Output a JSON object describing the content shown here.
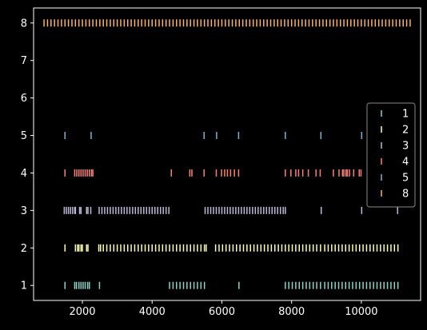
{
  "chart_data": {
    "type": "eventplot",
    "title": "",
    "xlabel": "",
    "ylabel": "",
    "xlim": [
      600,
      11700
    ],
    "ylim": [
      0.6,
      8.4
    ],
    "xticks": [
      2000,
      4000,
      6000,
      8000,
      10000
    ],
    "yticks": [
      1,
      2,
      3,
      4,
      5,
      6,
      7,
      8
    ],
    "grid": false,
    "legend_placement": "right",
    "series": [
      {
        "name": "1",
        "y": 1,
        "color": "#8dd3c7",
        "events": [
          1500,
          1780,
          1830,
          1900,
          1960,
          2020,
          2080,
          2150,
          2200,
          2490,
          4500,
          4600,
          4700,
          4800,
          4900,
          5000,
          5100,
          5200,
          5300,
          5400,
          5500,
          6490,
          7820,
          7920,
          8020,
          8120,
          8220,
          8320,
          8420,
          8520,
          8620,
          8720,
          8830,
          8950,
          9050,
          9150,
          9250,
          9350,
          9450,
          9550,
          9650,
          9750,
          9850,
          9950,
          10050,
          10150,
          10250,
          10350,
          10450,
          10550,
          10650,
          10750,
          10850,
          10950,
          11050
        ]
      },
      {
        "name": "2",
        "y": 2,
        "color": "#ffffb3",
        "events": [
          1500,
          1800,
          1860,
          1900,
          1960,
          2000,
          2120,
          2160,
          2470,
          2520,
          2600,
          2700,
          2800,
          2900,
          3000,
          3100,
          3200,
          3300,
          3400,
          3500,
          3600,
          3700,
          3800,
          3900,
          4000,
          4100,
          4200,
          4300,
          4400,
          4500,
          4600,
          4700,
          4800,
          4900,
          5000,
          5100,
          5200,
          5300,
          5400,
          5500,
          5550,
          5820,
          5920,
          6020,
          6120,
          6220,
          6320,
          6420,
          6520,
          6620,
          6720,
          6820,
          6920,
          7020,
          7120,
          7220,
          7320,
          7420,
          7520,
          7620,
          7720,
          7820,
          7920,
          8020,
          8120,
          8220,
          8320,
          8420,
          8520,
          8620,
          8720,
          8830,
          8950,
          9050,
          9150,
          9250,
          9350,
          9450,
          9550,
          9650,
          9750,
          9850,
          9950,
          10050,
          10150,
          10250,
          10350,
          10450,
          10550,
          10650,
          10750,
          10850,
          10950,
          11050
        ]
      },
      {
        "name": "3",
        "y": 3,
        "color": "#bebada",
        "events": [
          1480,
          1540,
          1600,
          1660,
          1720,
          1780,
          1800,
          1920,
          1960,
          2120,
          2160,
          2240,
          2480,
          2560,
          2640,
          2720,
          2800,
          2880,
          2960,
          3040,
          3120,
          3200,
          3280,
          3360,
          3440,
          3520,
          3600,
          3680,
          3760,
          3840,
          3920,
          4000,
          4080,
          4160,
          4240,
          4320,
          4400,
          4480,
          5520,
          5600,
          5680,
          5760,
          5840,
          5920,
          6000,
          6080,
          6160,
          6240,
          6320,
          6400,
          6480,
          6560,
          6640,
          6720,
          6800,
          6880,
          6960,
          7040,
          7120,
          7200,
          7280,
          7360,
          7440,
          7520,
          7600,
          7680,
          7760,
          7820,
          8850,
          10010,
          11040
        ]
      },
      {
        "name": "4",
        "y": 4,
        "color": "#fb8072",
        "events": [
          1500,
          1780,
          1840,
          1900,
          1960,
          2020,
          2080,
          2140,
          2200,
          2260,
          2300,
          4550,
          5080,
          5140,
          5490,
          5840,
          5990,
          6080,
          6160,
          6250,
          6360,
          6480,
          7820,
          7980,
          8120,
          8200,
          8320,
          8480,
          8700,
          8820,
          9200,
          9360,
          9460,
          9500,
          9560,
          9600,
          9660,
          9780,
          9940,
          9990,
          10200,
          10920,
          10980
        ]
      },
      {
        "name": "5",
        "y": 5,
        "color": "#80b1d3",
        "events": [
          1500,
          2250,
          5490,
          5850,
          6480,
          7820,
          8840,
          10010,
          11030
        ]
      },
      {
        "name": "8",
        "y": 8,
        "color": "#fdb462",
        "events": [
          900,
          1000,
          1100,
          1200,
          1300,
          1400,
          1500,
          1600,
          1700,
          1800,
          1900,
          2000,
          2100,
          2200,
          2300,
          2400,
          2500,
          2600,
          2700,
          2800,
          2900,
          3000,
          3100,
          3200,
          3300,
          3400,
          3500,
          3600,
          3700,
          3800,
          3900,
          4000,
          4100,
          4200,
          4300,
          4400,
          4500,
          4600,
          4700,
          4800,
          4900,
          5000,
          5100,
          5200,
          5300,
          5400,
          5500,
          5600,
          5700,
          5800,
          5900,
          6000,
          6100,
          6200,
          6300,
          6400,
          6500,
          6600,
          6700,
          6800,
          6900,
          7000,
          7100,
          7200,
          7300,
          7400,
          7500,
          7600,
          7700,
          7800,
          7900,
          8000,
          8100,
          8200,
          8300,
          8400,
          8500,
          8600,
          8700,
          8800,
          8900,
          9000,
          9100,
          9200,
          9300,
          9400,
          9500,
          9600,
          9700,
          9800,
          9900,
          10000,
          10100,
          10200,
          10300,
          10400,
          10500,
          10600,
          10700,
          10800,
          10900,
          11000,
          11100,
          11200,
          11300,
          11400
        ]
      }
    ]
  }
}
